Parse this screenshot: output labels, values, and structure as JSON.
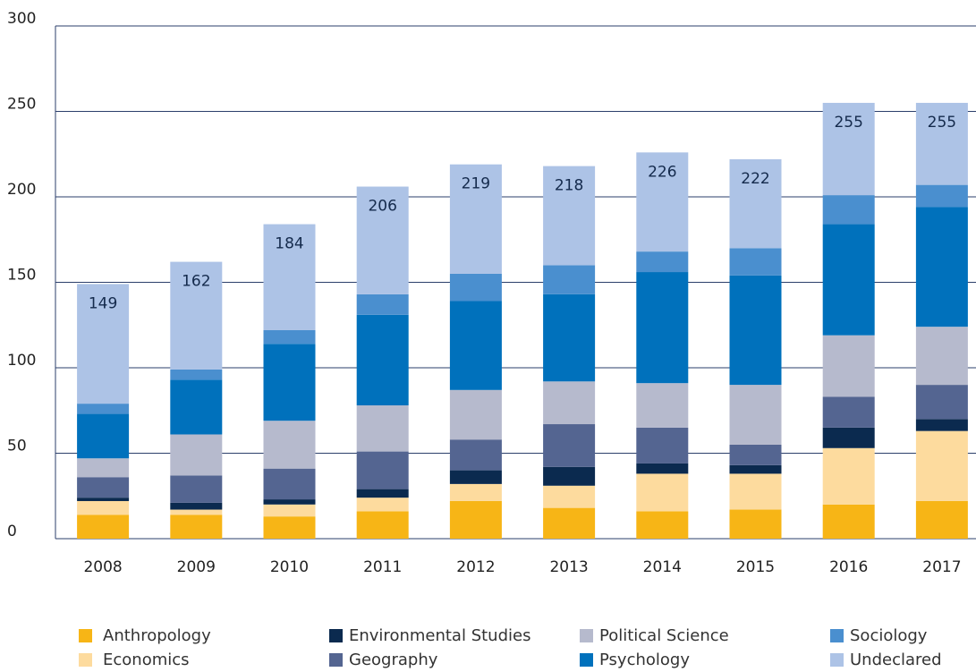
{
  "chart_data": {
    "type": "stacked_bar",
    "categories": [
      "2008",
      "2009",
      "2010",
      "2011",
      "2012",
      "2013",
      "2014",
      "2015",
      "2016",
      "2017"
    ],
    "series": [
      {
        "name": "Anthropology",
        "color": "#f7b516",
        "values": [
          14,
          14,
          13,
          16,
          22,
          18,
          16,
          17,
          20,
          22
        ]
      },
      {
        "name": "Economics",
        "color": "#fddb9e",
        "values": [
          8,
          3,
          7,
          8,
          10,
          13,
          22,
          21,
          33,
          41
        ]
      },
      {
        "name": "Environmental Studies",
        "color": "#0b2a4f",
        "values": [
          2,
          4,
          3,
          5,
          8,
          11,
          6,
          5,
          12,
          7
        ]
      },
      {
        "name": "Geography",
        "color": "#546591",
        "values": [
          12,
          16,
          18,
          22,
          18,
          25,
          21,
          12,
          18,
          20
        ]
      },
      {
        "name": "Political Science",
        "color": "#b6bacd",
        "values": [
          11,
          24,
          28,
          27,
          29,
          25,
          26,
          35,
          36,
          34
        ]
      },
      {
        "name": "Psychology",
        "color": "#0071bc",
        "values": [
          26,
          32,
          45,
          53,
          52,
          51,
          65,
          64,
          65,
          70
        ]
      },
      {
        "name": "Sociology",
        "color": "#4a8fcf",
        "values": [
          6,
          6,
          8,
          12,
          16,
          17,
          12,
          16,
          17,
          13
        ]
      },
      {
        "name": "Undeclared",
        "color": "#adc3e6",
        "values": [
          70,
          63,
          62,
          63,
          64,
          58,
          58,
          52,
          54,
          48
        ]
      }
    ],
    "totals": [
      149,
      162,
      184,
      206,
      219,
      218,
      226,
      222,
      255,
      255
    ],
    "ylim": [
      0,
      300
    ],
    "yticks": [
      0,
      50,
      100,
      150,
      200,
      250,
      300
    ],
    "grid": true
  }
}
